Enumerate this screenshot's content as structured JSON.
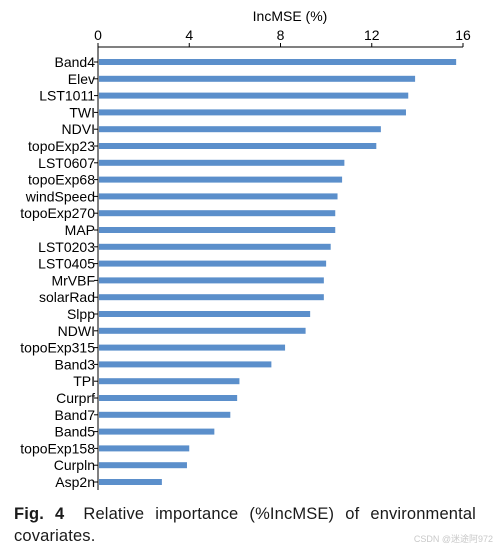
{
  "chart_data": {
    "type": "bar",
    "orientation": "horizontal",
    "xlabel": "IncMSE (%)",
    "xlim": [
      0,
      16
    ],
    "xticks": [
      0,
      4,
      8,
      12,
      16
    ],
    "categories": [
      "Band4",
      "Elev",
      "LST1011",
      "TWI",
      "NDVI",
      "topoExp23",
      "LST0607",
      "topoExp68",
      "windSpeed",
      "topoExp270",
      "MAP",
      "LST0203",
      "LST0405",
      "MrVBF",
      "solarRad",
      "Slpp",
      "NDWI",
      "topoExp315",
      "Band3",
      "TPI",
      "Curprf",
      "Band7",
      "Band5",
      "topoExp158",
      "Curpln",
      "Asp2n"
    ],
    "values": [
      15.7,
      13.9,
      13.6,
      13.5,
      12.4,
      12.2,
      10.8,
      10.7,
      10.5,
      10.4,
      10.4,
      10.2,
      10.0,
      9.9,
      9.9,
      9.3,
      9.1,
      8.2,
      7.6,
      6.2,
      6.1,
      5.8,
      5.1,
      4.0,
      3.9,
      2.8
    ],
    "bar_color": "#5b8fcb",
    "grid": false,
    "legend": "none",
    "x_axis_position": "top"
  },
  "caption": {
    "label": "Fig. 4",
    "text": "Relative importance (%IncMSE) of environmental covariates."
  },
  "watermark": "CSDN @迷途阿972"
}
